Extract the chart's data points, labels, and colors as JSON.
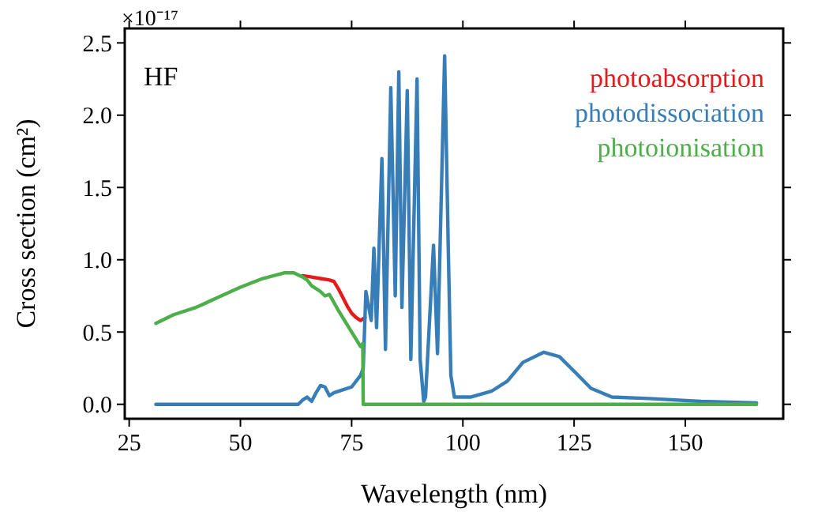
{
  "chart_data": {
    "type": "line",
    "xlabel": "Wavelength (nm)",
    "ylabel": "Cross section (cm²)",
    "annotations": [
      "×10⁻¹⁷",
      "HF"
    ],
    "xlim": [
      24,
      172
    ],
    "ylim": [
      -0.1,
      2.6
    ],
    "xticks": [
      25,
      50,
      75,
      100,
      125,
      150
    ],
    "yticks": [
      {
        "value": 0,
        "label": "0.0"
      },
      {
        "value": 0.5,
        "label": "0.5"
      },
      {
        "value": 1,
        "label": "1.0"
      },
      {
        "value": 1.5,
        "label": "1.5"
      },
      {
        "value": 2,
        "label": "2.0"
      },
      {
        "value": 2.5,
        "label": "2.5"
      }
    ],
    "grid": false,
    "legend": "top right",
    "line_style": "solid",
    "marker": "none",
    "series": [
      {
        "name": "photoabsorption",
        "color": "#e41a1c",
        "x": [
          64,
          66,
          68,
          70,
          71,
          72,
          73,
          74,
          75,
          76,
          77,
          78
        ],
        "values": [
          0.89,
          0.88,
          0.87,
          0.86,
          0.85,
          0.8,
          0.74,
          0.68,
          0.63,
          0.6,
          0.58,
          0.6
        ]
      },
      {
        "name": "photodissociation",
        "color": "#377eb8",
        "x": [
          31,
          40,
          50,
          60,
          63,
          64,
          65,
          66,
          67,
          68,
          69,
          70,
          71,
          73,
          75,
          77,
          77.6,
          78.2,
          79.4,
          80,
          80.6,
          81.8,
          82.6,
          83.8,
          84.8,
          85.6,
          86.3,
          87.5,
          88.3,
          89.7,
          90.4,
          91.2,
          91.6,
          93.4,
          94.3,
          95.9,
          96.7,
          97.3,
          98.1,
          101.7,
          106.4,
          110,
          113.5,
          118.2,
          121.7,
          125.3,
          128.8,
          133.5,
          141.8,
          153.5,
          166
        ],
        "values": [
          0,
          0,
          0,
          0,
          0,
          0.03,
          0.05,
          0.02,
          0.08,
          0.13,
          0.12,
          0.06,
          0.08,
          0.1,
          0.12,
          0.2,
          0.25,
          0.78,
          0.58,
          1.08,
          0.53,
          1.7,
          0.38,
          2.19,
          0.75,
          2.3,
          0.67,
          2.17,
          0.31,
          2.25,
          0.31,
          0.02,
          0.05,
          1.1,
          0.35,
          2.41,
          1.11,
          0.2,
          0.05,
          0.05,
          0.09,
          0.16,
          0.29,
          0.36,
          0.33,
          0.22,
          0.11,
          0.05,
          0.04,
          0.02,
          0.01
        ]
      },
      {
        "name": "photoionisation",
        "color": "#4daf4a",
        "x": [
          31,
          35,
          40,
          45,
          50,
          55,
          60,
          62,
          64,
          65,
          66,
          68,
          69,
          70,
          72,
          74,
          76,
          77,
          77.5,
          77.6,
          100,
          166
        ],
        "values": [
          0.56,
          0.62,
          0.67,
          0.74,
          0.81,
          0.87,
          0.91,
          0.91,
          0.88,
          0.86,
          0.82,
          0.78,
          0.75,
          0.76,
          0.65,
          0.55,
          0.45,
          0.4,
          0.42,
          0,
          0,
          0
        ]
      }
    ]
  }
}
